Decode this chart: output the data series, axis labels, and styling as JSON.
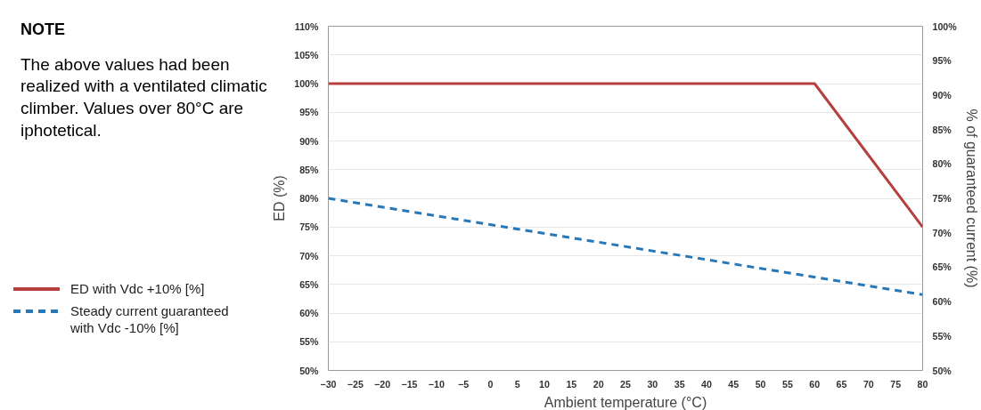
{
  "chart_data": {
    "type": "line",
    "xlabel": "Ambient temperature (°C)",
    "ylabel": "ED (%)",
    "y2label": "% of guaranteed current (%)",
    "annotations": [
      "NOTE",
      "The above values had been realized with a ventilated climatic climber. Values over 80°C are iphotetical."
    ],
    "series": [
      {
        "name": "ED with Vdc +10% [%]",
        "color": "#b5403f",
        "x": [
          -30,
          60,
          80
        ],
        "values": [
          100,
          100,
          75
        ],
        "line_style": "solid"
      },
      {
        "name": "Steady current guaranteed with Vdc -10% [%]",
        "color": "#2878b8",
        "x": [
          -30,
          80
        ],
        "values": [
          75,
          61
        ],
        "axis": "y2",
        "line_style": "dashed"
      }
    ],
    "xlim": [
      -30,
      80
    ],
    "xticks": [
      -30,
      -25,
      -20,
      -15,
      -10,
      -5,
      0,
      5,
      10,
      15,
      20,
      25,
      30,
      35,
      40,
      45,
      50,
      55,
      60,
      65,
      70,
      75,
      80
    ],
    "ylim": [
      50,
      110
    ],
    "yticks": [
      {
        "value": 50,
        "label": "50%"
      },
      {
        "value": 55,
        "label": "55%"
      },
      {
        "value": 60,
        "label": "60%"
      },
      {
        "value": 65,
        "label": "65%"
      },
      {
        "value": 70,
        "label": "70%"
      },
      {
        "value": 75,
        "label": "75%"
      },
      {
        "value": 80,
        "label": "80%"
      },
      {
        "value": 85,
        "label": "85%"
      },
      {
        "value": 90,
        "label": "90%"
      },
      {
        "value": 95,
        "label": "95%"
      },
      {
        "value": 100,
        "label": "100%"
      },
      {
        "value": 105,
        "label": "105%"
      },
      {
        "value": 110,
        "label": "110%"
      }
    ],
    "y2lim": [
      50,
      100
    ],
    "y2ticks": [
      {
        "value": 50,
        "label": "50%"
      },
      {
        "value": 55,
        "label": "55%"
      },
      {
        "value": 60,
        "label": "60%"
      },
      {
        "value": 65,
        "label": "65%"
      },
      {
        "value": 70,
        "label": "70%"
      },
      {
        "value": 75,
        "label": "75%"
      },
      {
        "value": 80,
        "label": "80%"
      },
      {
        "value": 85,
        "label": "85%"
      },
      {
        "value": 90,
        "label": "90%"
      },
      {
        "value": 95,
        "label": "95%"
      },
      {
        "value": 100,
        "label": "100%"
      }
    ],
    "grid": "y",
    "legend": "left",
    "marker": "none"
  }
}
